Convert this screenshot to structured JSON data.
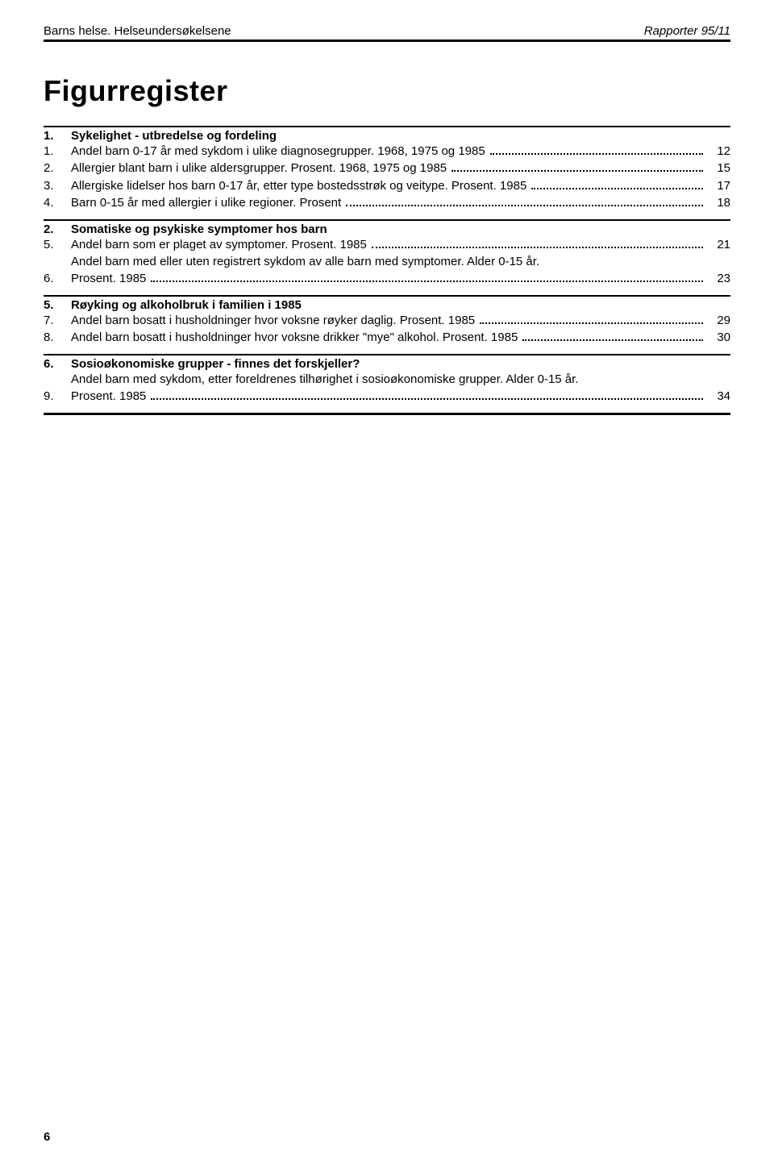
{
  "header": {
    "left": "Barns helse. Helseundersøkelsene",
    "right": "Rapporter 95/11"
  },
  "title": "Figurregister",
  "sections": [
    {
      "num": "1.",
      "heading": "Sykelighet - utbredelse og fordeling",
      "entries": [
        {
          "num": "1.",
          "pre": "",
          "label": "Andel barn 0-17 år med sykdom i ulike diagnosegrupper. 1968, 1975 og 1985",
          "page": "12"
        },
        {
          "num": "2.",
          "pre": "",
          "label": "Allergier blant barn i ulike aldersgrupper. Prosent. 1968, 1975 og 1985",
          "page": "15"
        },
        {
          "num": "3.",
          "pre": "",
          "label": "Allergiske lidelser hos barn 0-17 år, etter type bostedsstrøk og veitype. Prosent. 1985",
          "page": "17"
        },
        {
          "num": "4.",
          "pre": "",
          "label": "Barn 0-15 år med allergier i ulike regioner. Prosent",
          "page": "18"
        }
      ]
    },
    {
      "num": "2.",
      "heading": "Somatiske og psykiske symptomer hos barn",
      "entries": [
        {
          "num": "5.",
          "pre": "",
          "label": "Andel barn som er plaget av symptomer. Prosent. 1985",
          "page": "21"
        },
        {
          "num": "6.",
          "pre": "Andel barn med eller uten registrert sykdom av alle barn med symptomer. Alder 0-15 år.",
          "label": "Prosent. 1985",
          "page": "23"
        }
      ]
    },
    {
      "num": "5.",
      "heading": "Røyking og alkoholbruk i familien i 1985",
      "entries": [
        {
          "num": "7.",
          "pre": "",
          "label": "Andel barn bosatt i husholdninger hvor voksne røyker daglig. Prosent. 1985",
          "page": "29"
        },
        {
          "num": "8.",
          "pre": "",
          "label": "Andel barn bosatt i husholdninger hvor voksne drikker \"mye\" alkohol. Prosent. 1985",
          "page": "30"
        }
      ]
    },
    {
      "num": "6.",
      "heading": "Sosioøkonomiske grupper - finnes det forskjeller?",
      "entries": [
        {
          "num": "9.",
          "pre": "Andel barn med sykdom, etter foreldrenes tilhørighet i sosioøkonomiske grupper. Alder 0-15 år.",
          "label": "Prosent. 1985",
          "page": "34"
        }
      ]
    }
  ],
  "page_number": "6",
  "colors": {
    "text": "#000000",
    "background": "#ffffff",
    "rule": "#000000"
  },
  "typography": {
    "body_fontsize_pt": 11,
    "title_fontsize_pt": 27,
    "title_weight": 900,
    "heading_weight": 900
  }
}
